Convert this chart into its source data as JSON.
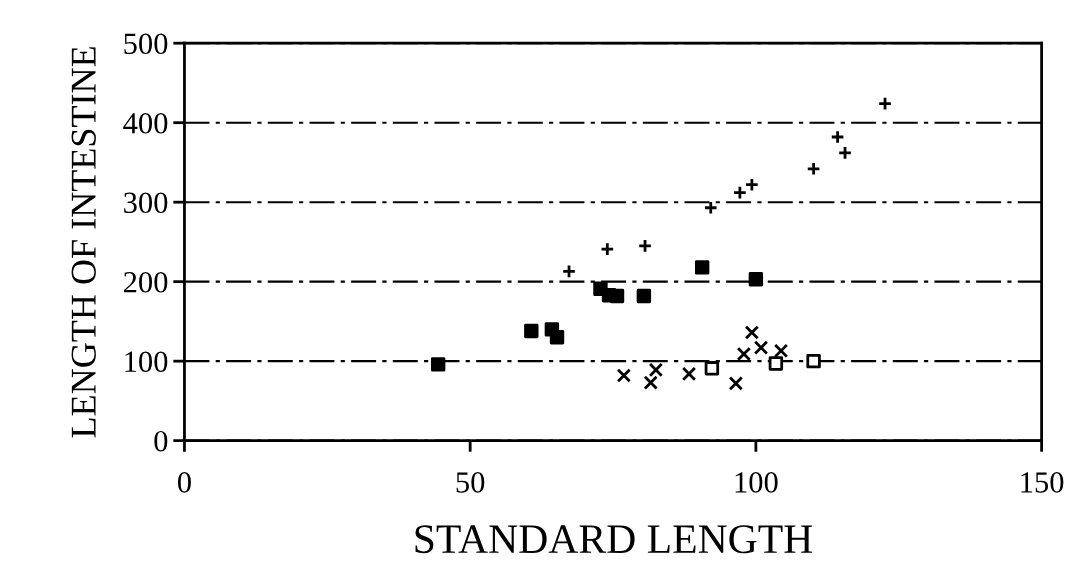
{
  "chart_data": {
    "type": "scatter",
    "xlabel": "STANDARD LENGTH",
    "ylabel": "LENGTH OF INTESTINE",
    "xlim": [
      0,
      150
    ],
    "xticks": [
      0,
      50,
      100,
      150
    ],
    "ylim": [
      0,
      500
    ],
    "yticks": [
      0,
      100,
      200,
      300,
      400,
      500
    ],
    "grid": "y",
    "legend": false,
    "series": [
      {
        "color": "#000000",
        "marker": "plus",
        "x": [
          67.3,
          74,
          80.6,
          92.1,
          97.2,
          99.3,
          110.1,
          114.3,
          115.6,
          122.6
        ],
        "values": [
          213,
          241,
          245,
          293,
          312,
          322,
          342,
          382,
          362,
          424
        ]
      },
      {
        "color": "#000000",
        "marker": "square",
        "x": [
          44.4,
          60.7,
          64.3,
          65.2,
          72.8,
          74.3,
          75.7,
          80.4,
          90.6,
          100
        ],
        "values": [
          96,
          138,
          140,
          130,
          191,
          183,
          182,
          182,
          218,
          203
        ]
      },
      {
        "color": "#000000",
        "marker": "square_open",
        "x": [
          92.3,
          103.5,
          110.1
        ],
        "values": [
          91,
          97,
          100
        ]
      },
      {
        "color": "#000000",
        "marker": "cross",
        "x": [
          76.9,
          81.6,
          82.5,
          88.3,
          96.5,
          97.9,
          99.3,
          100.9,
          104.4
        ],
        "values": [
          82,
          73,
          89,
          84,
          72,
          109,
          136,
          117,
          113
        ]
      }
    ]
  }
}
